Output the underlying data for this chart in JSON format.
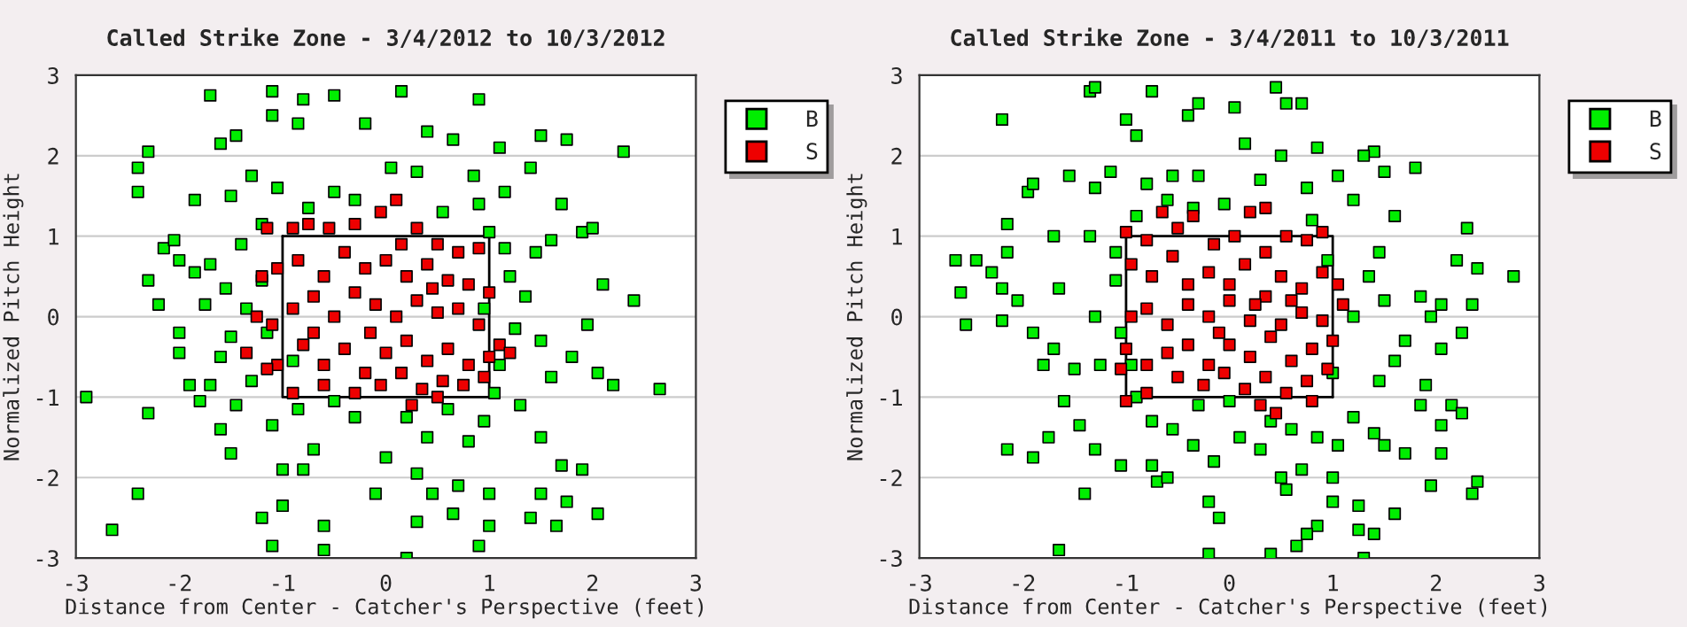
{
  "chart_data": [
    {
      "type": "scatter",
      "title": "Called Strike Zone - 3/4/2012 to 10/3/2012",
      "xlabel": "Distance from Center - Catcher's Perspective (feet)",
      "ylabel": "Normalized Pitch Height",
      "xlim": [
        -3,
        3
      ],
      "ylim": [
        -3,
        3
      ],
      "xticks": [
        -3,
        -2,
        -1,
        0,
        1,
        2,
        3
      ],
      "yticks": [
        -3,
        -2,
        -1,
        0,
        1,
        2,
        3
      ],
      "grid": "y",
      "legend": "top right",
      "marker": "square",
      "series": [
        {
          "name": "B",
          "color": "#00ee00",
          "x": [
            -2.9,
            -2.65,
            -2.4,
            -2.4,
            -2.4,
            -2.3,
            -2.3,
            -2.3,
            -2.15,
            -2.05,
            -2.0,
            -2.0,
            -1.9,
            -1.8,
            -1.85,
            -1.7,
            -1.6,
            -1.5,
            -1.45,
            -1.3,
            -1.1,
            -1.1,
            -0.85,
            -0.8,
            -0.5,
            -0.2,
            0.15,
            0.4,
            0.65,
            0.9,
            1.1,
            1.5,
            1.75,
            2.3,
            1.4,
            1.15,
            1.7,
            1.9,
            2.0,
            2.4,
            2.65,
            2.2,
            2.05,
            1.95,
            2.1,
            1.8,
            1.6,
            1.5,
            1.35,
            1.2,
            1.45,
            1.6,
            1.1,
            1.3,
            1.5,
            1.7,
            1.9,
            2.05,
            1.75,
            1.5,
            1.4,
            1.65,
            1.0,
            1.0,
            0.9,
            0.2,
            0.3,
            0.45,
            0.7,
            0.65,
            -0.1,
            -0.6,
            -0.6,
            -1.1,
            -1.2,
            -1.0,
            -1.0,
            -0.8,
            -0.7,
            -0.85,
            -1.1,
            -1.45,
            -1.3,
            -1.5,
            -1.6,
            -1.7,
            -1.6,
            -1.5,
            -1.35,
            -1.55,
            -1.7,
            -1.85,
            -1.75,
            -2.0,
            -2.2,
            -1.4,
            -1.2,
            -1.05,
            -0.75,
            -0.5,
            -0.3,
            0.05,
            0.3,
            0.55,
            0.85,
            0.9,
            1.0,
            0.2,
            0.4,
            0.6,
            0.8,
            0.95,
            -0.3,
            -0.5,
            0.0,
            0.3,
            1.05,
            1.25,
            0.95,
            1.15,
            -1.15,
            -1.2,
            -0.9
          ],
          "values": [
            -1.0,
            -2.65,
            -2.2,
            1.85,
            1.55,
            2.05,
            0.45,
            -1.2,
            0.85,
            0.95,
            0.7,
            -0.2,
            -0.85,
            -1.05,
            1.45,
            2.75,
            2.15,
            1.5,
            2.25,
            1.75,
            2.8,
            2.5,
            2.4,
            2.7,
            2.75,
            2.4,
            2.8,
            2.3,
            2.2,
            2.7,
            2.1,
            2.25,
            2.2,
            2.05,
            1.85,
            1.55,
            1.4,
            1.05,
            1.1,
            0.2,
            -0.9,
            -0.85,
            -0.7,
            -0.1,
            0.4,
            -0.5,
            -0.75,
            -0.3,
            0.25,
            0.5,
            0.8,
            0.95,
            -0.6,
            -1.1,
            -1.5,
            -1.85,
            -1.9,
            -2.45,
            -2.3,
            -2.2,
            -2.5,
            -2.6,
            -2.6,
            -2.2,
            -2.85,
            -3.0,
            -2.55,
            -2.2,
            -2.1,
            -2.45,
            -2.2,
            -2.6,
            -2.9,
            -2.85,
            -2.5,
            -2.35,
            -1.9,
            -1.9,
            -1.65,
            -1.15,
            -1.35,
            -1.1,
            -0.8,
            -1.7,
            -1.4,
            -0.85,
            -0.5,
            -0.25,
            0.1,
            0.35,
            0.65,
            0.55,
            0.15,
            -0.45,
            0.15,
            0.9,
            1.15,
            1.6,
            1.35,
            1.55,
            1.45,
            1.85,
            1.8,
            1.3,
            1.75,
            1.4,
            1.05,
            -1.25,
            -1.5,
            -1.15,
            -1.55,
            -1.3,
            -1.25,
            -1.05,
            -1.75,
            -1.95,
            -0.95,
            -0.15,
            0.1,
            0.85,
            -0.2,
            0.45,
            -0.55
          ]
        },
        {
          "name": "S",
          "color": "#ee0000",
          "x": [
            -1.15,
            -0.9,
            -0.75,
            -0.55,
            -0.3,
            -0.05,
            0.1,
            0.3,
            0.5,
            0.7,
            0.9,
            -1.05,
            -0.85,
            -0.6,
            -0.4,
            -0.2,
            0.0,
            0.2,
            0.4,
            0.6,
            0.8,
            1.0,
            -1.2,
            -1.25,
            -1.1,
            -0.9,
            -0.7,
            -0.5,
            -0.3,
            -0.1,
            0.1,
            0.3,
            0.5,
            0.7,
            0.9,
            1.1,
            1.2,
            -1.35,
            -1.05,
            -0.8,
            -0.6,
            -0.4,
            -0.2,
            0.0,
            0.2,
            0.4,
            0.6,
            0.8,
            1.0,
            -0.9,
            -0.6,
            -0.3,
            -0.05,
            0.15,
            0.35,
            0.55,
            0.75,
            0.95,
            0.25,
            0.5,
            -1.15,
            -0.7,
            0.15,
            -0.15,
            0.45
          ],
          "values": [
            1.1,
            1.1,
            1.15,
            1.1,
            1.15,
            1.3,
            1.45,
            1.1,
            0.9,
            0.8,
            0.85,
            0.6,
            0.7,
            0.5,
            0.8,
            0.6,
            0.7,
            0.5,
            0.65,
            0.45,
            0.4,
            0.3,
            0.5,
            0.0,
            -0.1,
            0.1,
            0.25,
            0.0,
            0.3,
            0.15,
            0.0,
            0.2,
            0.05,
            0.1,
            -0.1,
            -0.35,
            -0.45,
            -0.45,
            -0.6,
            -0.35,
            -0.6,
            -0.4,
            -0.7,
            -0.45,
            -0.3,
            -0.55,
            -0.4,
            -0.6,
            -0.5,
            -0.95,
            -0.85,
            -0.95,
            -0.85,
            -0.7,
            -0.9,
            -0.8,
            -0.85,
            -0.75,
            -1.1,
            -1.0,
            -0.65,
            -0.2,
            0.9,
            -0.2,
            0.35
          ]
        },
        {
          "type": "line",
          "marker": "none",
          "color": "#000000",
          "x": [
            -1,
            -1,
            1
          ],
          "values": [
            1,
            -1,
            -1
          ]
        },
        {
          "type": "line",
          "marker": "none",
          "color": "#000000",
          "x": [
            -1,
            1,
            1
          ],
          "values": [
            1,
            1,
            -1
          ]
        }
      ]
    },
    {
      "type": "scatter",
      "title": "Called Strike Zone - 3/4/2011 to 10/3/2011",
      "xlabel": "Distance from Center - Catcher's Perspective (feet)",
      "ylabel": "Normalized Pitch Height",
      "xlim": [
        -3,
        3
      ],
      "ylim": [
        -3,
        3
      ],
      "xticks": [
        -3,
        -2,
        -1,
        0,
        1,
        2,
        3
      ],
      "yticks": [
        -3,
        -2,
        -1,
        0,
        1,
        2,
        3
      ],
      "grid": "y",
      "legend": "top right",
      "marker": "square",
      "series": [
        {
          "name": "B",
          "color": "#00ee00",
          "x": [
            -2.65,
            -2.6,
            -2.55,
            -2.45,
            -2.3,
            -2.2,
            -2.2,
            -2.15,
            -2.15,
            -2.2,
            -2.15,
            -2.05,
            -1.95,
            -1.9,
            -1.9,
            -1.9,
            -1.8,
            -1.75,
            -1.7,
            -1.7,
            -1.65,
            -1.65,
            -1.6,
            -1.55,
            -1.5,
            -1.45,
            -1.4,
            -1.35,
            -1.3,
            -1.35,
            -1.3,
            -1.3,
            -1.3,
            -1.25,
            -1.15,
            -1.1,
            -1.05,
            -1.0,
            -0.9,
            -0.8,
            -0.75,
            -0.75,
            -0.7,
            -0.6,
            -0.55,
            -0.4,
            -0.3,
            -0.3,
            -0.2,
            -0.2,
            -0.1,
            -0.05,
            0.05,
            0.15,
            0.3,
            0.45,
            0.55,
            0.7,
            0.85,
            0.75,
            0.5,
            1.05,
            1.4,
            1.3,
            1.5,
            1.8,
            1.2,
            1.6,
            2.3,
            2.4,
            2.75,
            2.35,
            2.2,
            2.05,
            1.95,
            1.85,
            2.25,
            2.05,
            1.9,
            1.85,
            2.15,
            2.25,
            2.05,
            1.95,
            2.05,
            2.35,
            2.4,
            1.7,
            1.6,
            1.4,
            1.25,
            1.25,
            1.3,
            1.0,
            1.0,
            0.85,
            0.75,
            0.65,
            0.4,
            0.5,
            0.55,
            0.7,
            0.3,
            0.1,
            0.4,
            0.6,
            0.85,
            1.05,
            1.2,
            1.4,
            1.5,
            1.45,
            1.6,
            1.7,
            1.5,
            1.35,
            1.45,
            1.2,
            1.0,
            -0.35,
            -0.55,
            -0.75,
            -0.9,
            -0.95,
            -1.05,
            -1.1,
            -0.9,
            -0.6,
            -0.35,
            0.8,
            0.95,
            -0.15,
            0.0,
            -0.3
          ],
          "values": [
            0.7,
            0.3,
            -0.1,
            0.7,
            0.55,
            0.35,
            2.45,
            1.15,
            0.8,
            -0.05,
            -1.65,
            0.2,
            1.55,
            1.65,
            -1.75,
            -0.2,
            -0.6,
            -1.5,
            1.0,
            -0.4,
            0.35,
            -2.9,
            -1.05,
            1.75,
            -0.65,
            -1.35,
            -2.2,
            2.8,
            2.85,
            1.0,
            0.0,
            -1.65,
            1.6,
            -0.6,
            1.8,
            0.45,
            -1.85,
            2.45,
            2.25,
            1.65,
            2.8,
            -1.85,
            -2.05,
            -2.0,
            1.75,
            2.5,
            2.65,
            1.75,
            -2.3,
            -2.95,
            -2.5,
            1.4,
            2.6,
            2.15,
            1.7,
            2.85,
            2.65,
            2.65,
            2.1,
            1.6,
            2.0,
            1.75,
            2.05,
            2.0,
            1.8,
            1.85,
            1.45,
            1.25,
            1.1,
            0.6,
            0.5,
            0.15,
            0.7,
            0.15,
            0.0,
            0.25,
            -0.2,
            -0.4,
            -0.85,
            -1.1,
            -1.1,
            -1.2,
            -1.35,
            -2.1,
            -1.7,
            -2.2,
            -2.05,
            -1.7,
            -2.45,
            -2.7,
            -2.35,
            -2.65,
            -3.0,
            -2.3,
            -2.0,
            -2.6,
            -2.7,
            -2.85,
            -2.95,
            -2.0,
            -2.15,
            -1.9,
            -1.65,
            -1.5,
            -1.3,
            -1.4,
            -1.5,
            -1.6,
            -1.25,
            -1.45,
            -1.6,
            -0.8,
            -0.55,
            -0.3,
            0.2,
            0.5,
            0.8,
            0.0,
            -0.7,
            -1.6,
            -1.4,
            -1.3,
            -1.0,
            -0.6,
            -0.2,
            0.8,
            1.25,
            1.45,
            1.35,
            1.2,
            0.7,
            -1.8,
            -1.05,
            -1.1
          ]
        },
        {
          "name": "S",
          "color": "#ee0000",
          "x": [
            -1.0,
            -0.8,
            -0.65,
            -0.5,
            -0.35,
            -0.15,
            0.05,
            0.2,
            0.35,
            0.55,
            0.75,
            0.9,
            -0.95,
            -0.75,
            -0.55,
            -0.4,
            -0.2,
            0.0,
            0.15,
            0.35,
            0.5,
            0.7,
            0.9,
            1.05,
            -0.95,
            -0.8,
            -0.6,
            -0.4,
            -0.2,
            0.0,
            0.2,
            0.35,
            0.5,
            0.7,
            0.9,
            1.1,
            -1.0,
            -0.8,
            -0.6,
            -0.4,
            -0.2,
            0.0,
            0.2,
            0.4,
            0.6,
            0.8,
            1.0,
            -1.05,
            -0.8,
            -0.5,
            -0.25,
            -0.05,
            0.15,
            0.35,
            0.55,
            0.75,
            0.95,
            -1.0,
            0.3,
            0.45,
            0.8,
            0.25,
            -0.1,
            0.6
          ],
          "values": [
            1.05,
            0.95,
            1.3,
            1.1,
            1.25,
            0.9,
            1.0,
            1.3,
            1.35,
            1.0,
            0.95,
            1.05,
            0.65,
            0.5,
            0.75,
            0.4,
            0.55,
            0.4,
            0.65,
            0.8,
            0.5,
            0.35,
            0.55,
            0.4,
            0.0,
            0.1,
            -0.1,
            0.15,
            0.0,
            0.2,
            -0.05,
            0.25,
            -0.1,
            0.05,
            -0.05,
            0.15,
            -0.4,
            -0.6,
            -0.45,
            -0.35,
            -0.6,
            -0.35,
            -0.5,
            -0.25,
            -0.55,
            -0.4,
            -0.3,
            -0.65,
            -0.95,
            -0.75,
            -0.85,
            -0.7,
            -0.9,
            -0.75,
            -0.95,
            -0.8,
            -0.65,
            -1.05,
            -1.1,
            -1.2,
            -1.05,
            0.15,
            -0.2,
            0.2
          ]
        },
        {
          "type": "line",
          "marker": "none",
          "color": "#000000",
          "x": [
            -1,
            -1,
            1
          ],
          "values": [
            1,
            -1,
            -1
          ]
        },
        {
          "type": "line",
          "marker": "none",
          "color": "#000000",
          "x": [
            -1,
            1,
            1
          ],
          "values": [
            1,
            1,
            -1
          ]
        }
      ]
    }
  ]
}
